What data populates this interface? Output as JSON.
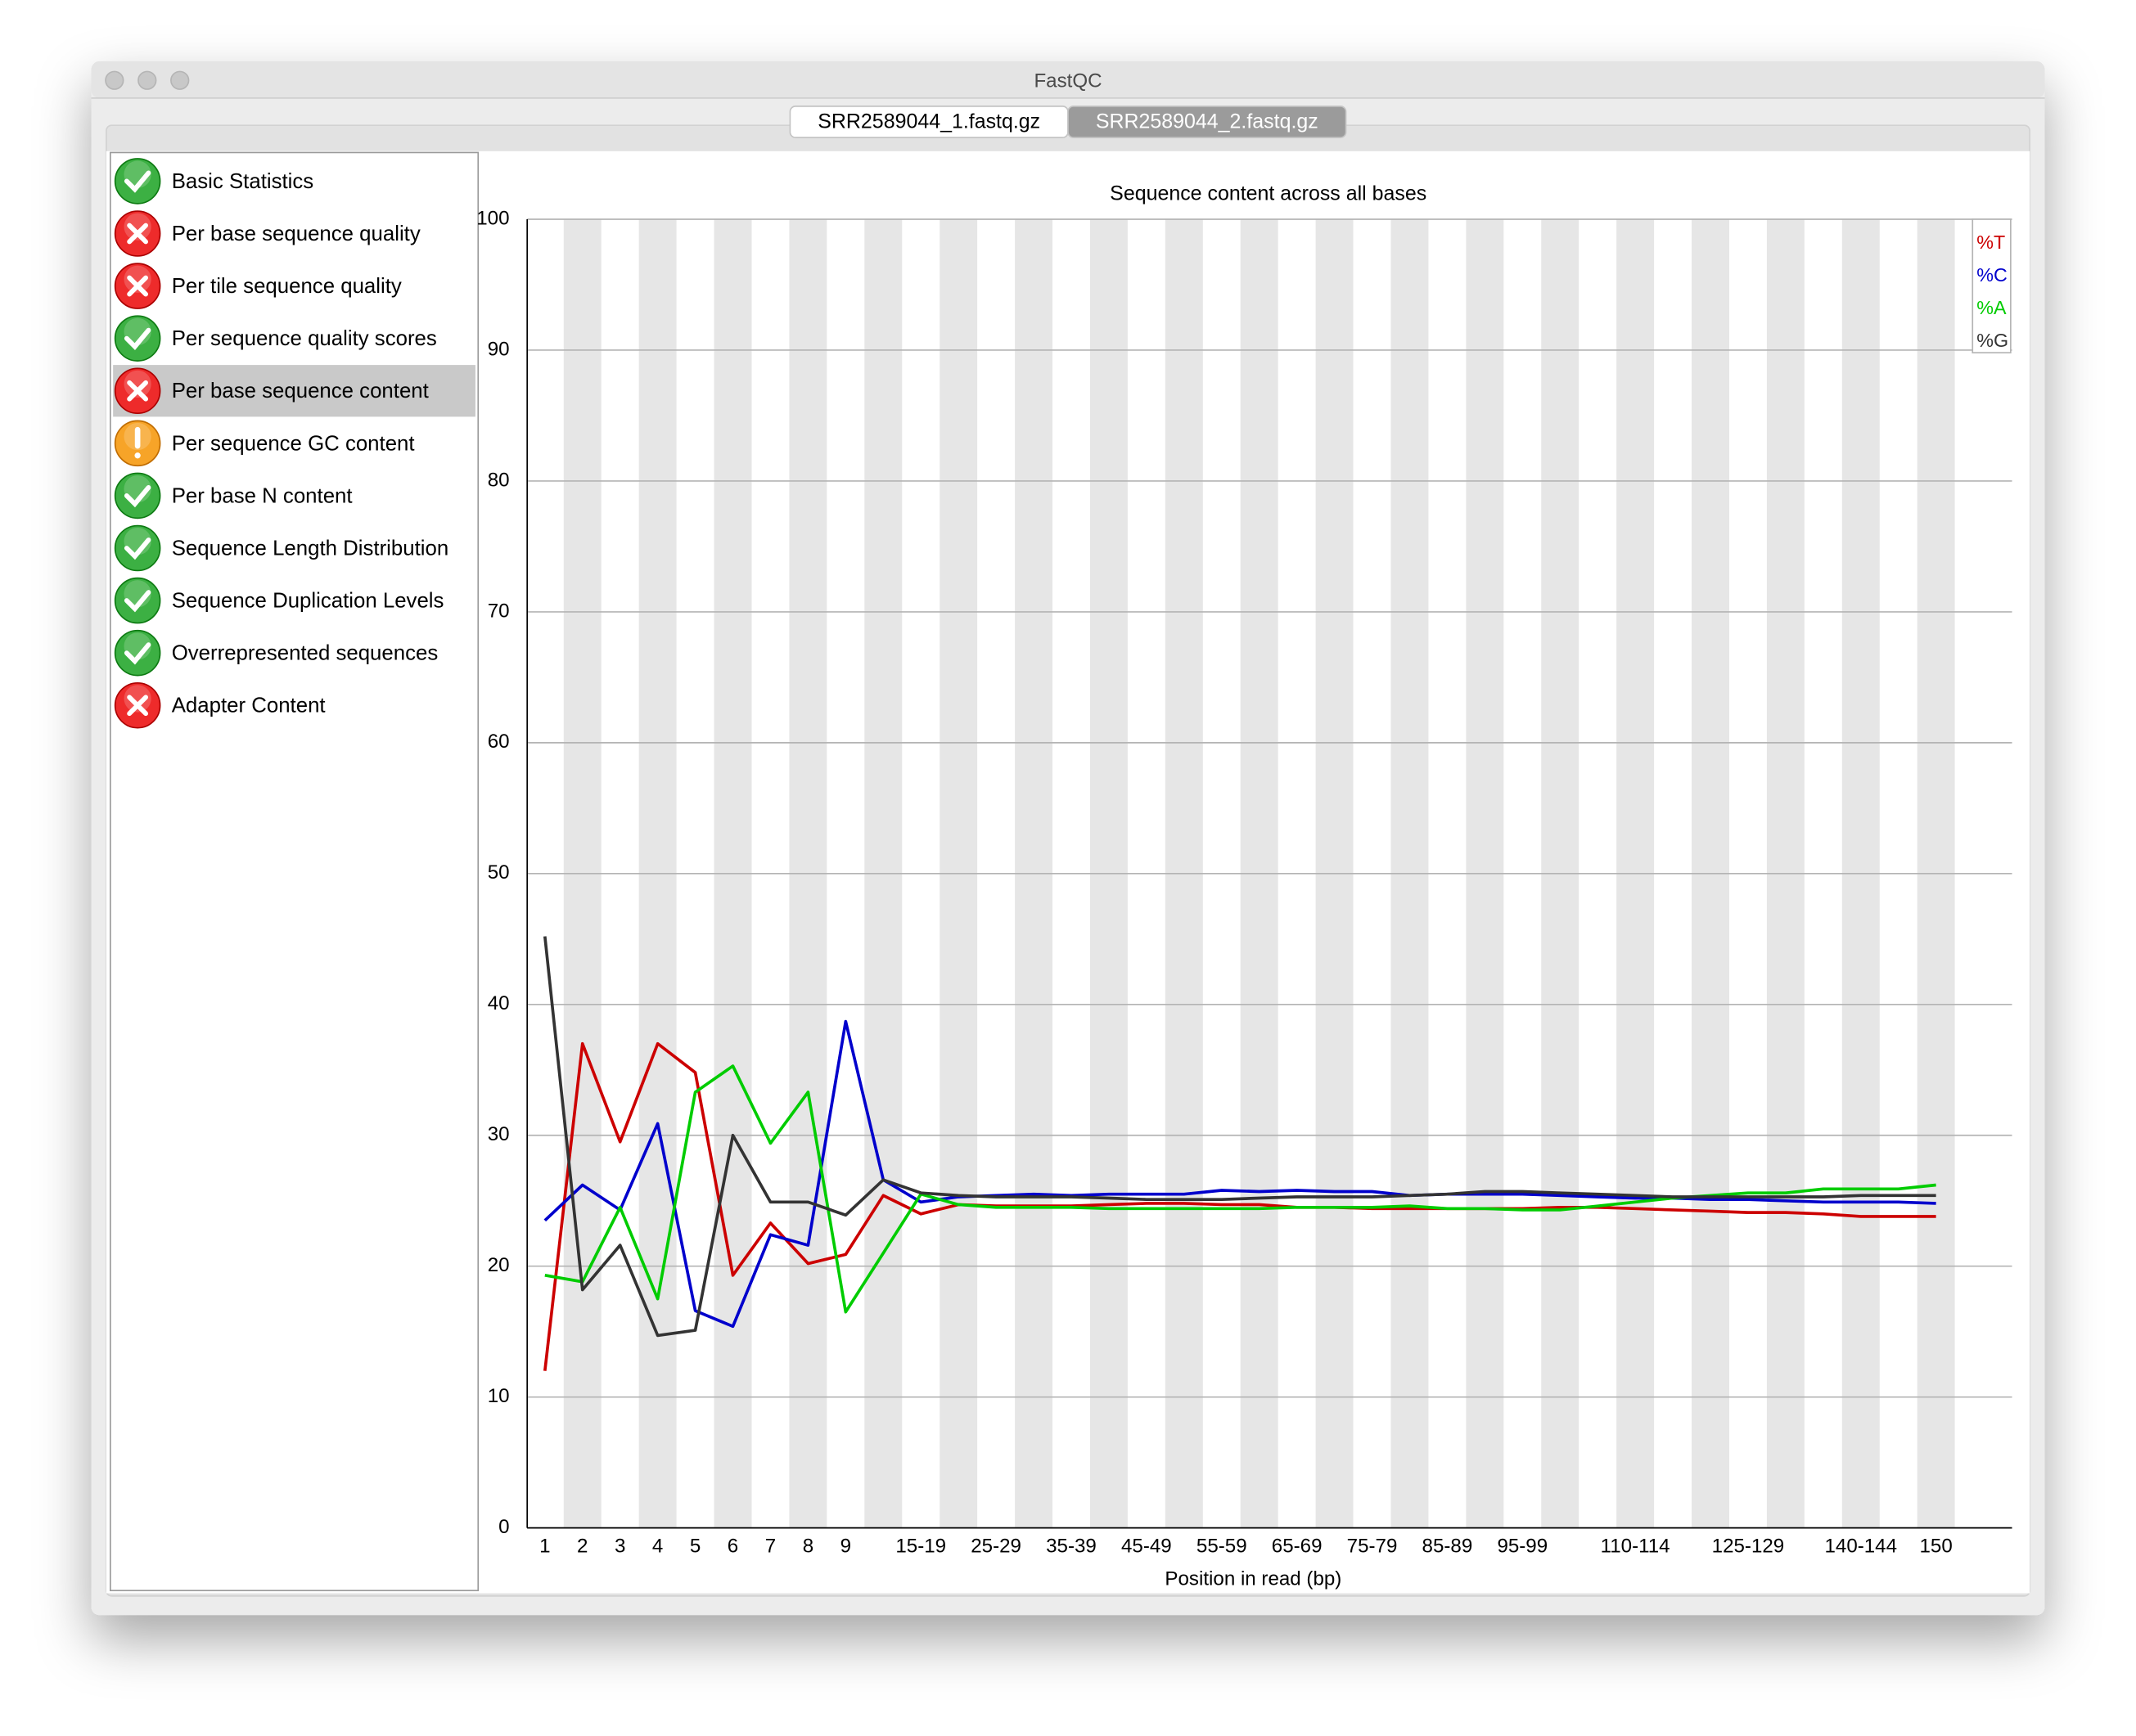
{
  "window": {
    "title": "FastQC",
    "tabs": [
      {
        "label": "SRR2589044_1.fastq.gz",
        "active": false
      },
      {
        "label": "SRR2589044_2.fastq.gz",
        "active": true
      }
    ]
  },
  "modules": [
    {
      "label": "Basic Statistics",
      "status": "pass"
    },
    {
      "label": "Per base sequence quality",
      "status": "fail"
    },
    {
      "label": "Per tile sequence quality",
      "status": "fail"
    },
    {
      "label": "Per sequence quality scores",
      "status": "pass"
    },
    {
      "label": "Per base sequence content",
      "status": "fail",
      "selected": true
    },
    {
      "label": "Per sequence GC content",
      "status": "warn"
    },
    {
      "label": "Per base N content",
      "status": "pass"
    },
    {
      "label": "Sequence Length Distribution",
      "status": "pass"
    },
    {
      "label": "Sequence Duplication Levels",
      "status": "pass"
    },
    {
      "label": "Overrepresented sequences",
      "status": "pass"
    },
    {
      "label": "Adapter Content",
      "status": "fail"
    }
  ],
  "chart_data": {
    "type": "line",
    "title": "Sequence content across all bases",
    "x_label": "Position in read (bp)",
    "categories": [
      "1",
      "2",
      "3",
      "4",
      "5",
      "6",
      "7",
      "8",
      "9",
      null,
      "15-19",
      null,
      "25-29",
      null,
      "35-39",
      null,
      "45-49",
      null,
      "55-59",
      null,
      "65-69",
      null,
      "75-79",
      null,
      "85-89",
      null,
      "95-99",
      null,
      null,
      "110-114",
      null,
      null,
      "125-129",
      null,
      null,
      "140-144",
      null,
      "150"
    ],
    "series": [
      {
        "name": "%T",
        "color": "#cc0000",
        "values": [
          12.0,
          37.0,
          29.5,
          37.0,
          34.8,
          19.3,
          23.3,
          20.2,
          20.9,
          25.4,
          24.0,
          24.7,
          24.6,
          24.6,
          24.6,
          24.7,
          24.8,
          24.8,
          24.7,
          24.7,
          24.5,
          24.5,
          24.4,
          24.4,
          24.4,
          24.4,
          24.4,
          24.5,
          24.5,
          24.4,
          24.3,
          24.2,
          24.1,
          24.1,
          24.0,
          23.8,
          23.8,
          23.8
        ]
      },
      {
        "name": "%C",
        "color": "#0000cc",
        "values": [
          23.5,
          26.2,
          24.3,
          30.9,
          16.6,
          15.4,
          22.4,
          21.6,
          38.7,
          26.6,
          24.9,
          25.3,
          25.4,
          25.5,
          25.4,
          25.5,
          25.5,
          25.5,
          25.8,
          25.7,
          25.8,
          25.7,
          25.7,
          25.4,
          25.5,
          25.5,
          25.5,
          25.4,
          25.3,
          25.2,
          25.2,
          25.1,
          25.1,
          25.0,
          24.9,
          24.9,
          24.9,
          24.8
        ]
      },
      {
        "name": "%A",
        "color": "#00cc00",
        "values": [
          19.3,
          18.8,
          24.5,
          17.5,
          33.3,
          35.3,
          29.4,
          33.3,
          16.5,
          21.0,
          25.5,
          24.7,
          24.5,
          24.5,
          24.5,
          24.4,
          24.4,
          24.4,
          24.4,
          24.4,
          24.5,
          24.5,
          24.5,
          24.6,
          24.4,
          24.4,
          24.3,
          24.3,
          24.6,
          24.9,
          25.2,
          25.4,
          25.6,
          25.6,
          25.9,
          25.9,
          25.9,
          26.2
        ]
      },
      {
        "name": "%G",
        "color": "#333333",
        "values": [
          45.2,
          18.2,
          21.6,
          14.7,
          15.1,
          30.0,
          24.9,
          24.9,
          23.9,
          26.6,
          25.6,
          25.4,
          25.3,
          25.3,
          25.3,
          25.2,
          25.1,
          25.1,
          25.1,
          25.2,
          25.3,
          25.3,
          25.3,
          25.4,
          25.5,
          25.7,
          25.7,
          25.6,
          25.5,
          25.4,
          25.3,
          25.3,
          25.3,
          25.3,
          25.3,
          25.4,
          25.4,
          25.4
        ]
      }
    ],
    "ylim": [
      0,
      100
    ],
    "yticks": [
      0,
      10,
      20,
      30,
      40,
      50,
      60,
      70,
      80,
      90,
      100
    ],
    "grid": true,
    "legend": "top-right"
  }
}
